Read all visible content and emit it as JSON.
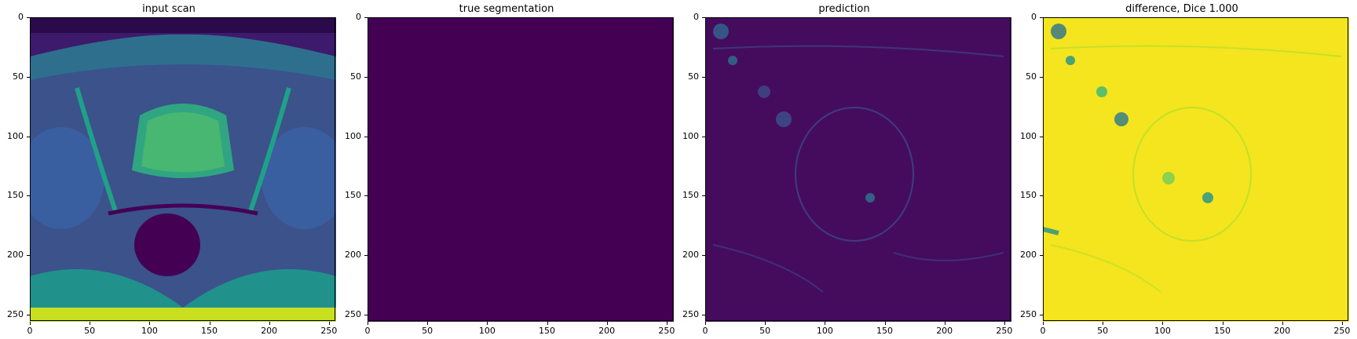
{
  "figure": {
    "panels": [
      {
        "title": "input scan",
        "image": "mri-axial-pelvis-scan-icon",
        "colormap": "viridis"
      },
      {
        "title": "true segmentation",
        "image": "empty-mask",
        "colormap": "viridis"
      },
      {
        "title": "prediction",
        "image": "sparse-prediction-heatmap",
        "colormap": "viridis"
      },
      {
        "title": "difference, Dice 1.000",
        "image": "difference-heatmap",
        "colormap": "viridis"
      }
    ]
  },
  "chart_data": [
    {
      "type": "heatmap",
      "title": "input scan",
      "x_ticks": [
        0,
        50,
        100,
        150,
        200,
        250
      ],
      "y_ticks": [
        0,
        50,
        100,
        150,
        200,
        250
      ],
      "xlim": [
        0,
        256
      ],
      "ylim": [
        256,
        0
      ]
    },
    {
      "type": "heatmap",
      "title": "true segmentation",
      "x_ticks": [
        0,
        50,
        100,
        150,
        200,
        250
      ],
      "y_ticks": [
        0,
        50,
        100,
        150,
        200,
        250
      ],
      "xlim": [
        0,
        256
      ],
      "ylim": [
        256,
        0
      ],
      "value": 0,
      "color": "#440154"
    },
    {
      "type": "heatmap",
      "title": "prediction",
      "x_ticks": [
        0,
        50,
        100,
        150,
        200,
        250
      ],
      "y_ticks": [
        0,
        50,
        100,
        150,
        200,
        250
      ],
      "xlim": [
        0,
        256
      ],
      "ylim": [
        256,
        0
      ]
    },
    {
      "type": "heatmap",
      "title": "difference, Dice 1.000",
      "x_ticks": [
        0,
        50,
        100,
        150,
        200,
        250
      ],
      "y_ticks": [
        0,
        50,
        100,
        150,
        200,
        250
      ],
      "xlim": [
        0,
        256
      ],
      "ylim": [
        256,
        0
      ]
    }
  ],
  "colors": {
    "viridis_low": "#440154",
    "viridis_mid": "#21918c",
    "viridis_high": "#fde725"
  }
}
